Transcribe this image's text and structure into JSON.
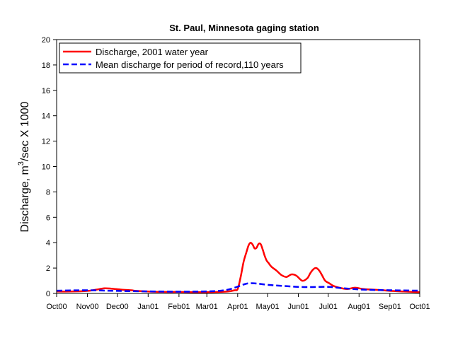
{
  "chart_data": {
    "type": "line",
    "title": "St. Paul, Minnesota gaging station",
    "xlabel": "",
    "ylabel": "Discharge, m³/sec X 1000",
    "ylabel_parts": {
      "pre": "Discharge, m",
      "sup": "3",
      "post": "/sec X 1000"
    },
    "ylim": [
      0,
      20
    ],
    "yticks": [
      "0",
      "2",
      "4",
      "6",
      "8",
      "10",
      "12",
      "14",
      "16",
      "18",
      "20"
    ],
    "xticks": [
      "Oct00",
      "Nov00",
      "Dec00",
      "Jan01",
      "Feb01",
      "Mar01",
      "Apr01",
      "May01",
      "Jun01",
      "Jul01",
      "Aug01",
      "Sep01",
      "Oct01"
    ],
    "legend_position": "top-left",
    "grid": false,
    "series": [
      {
        "name": "Discharge, 2001 water year",
        "color": "#ff0000",
        "style": "solid",
        "x": [
          "2000-10-01",
          "2000-10-15",
          "2000-11-01",
          "2000-11-10",
          "2000-11-18",
          "2000-11-25",
          "2000-12-05",
          "2000-12-15",
          "2000-12-20",
          "2001-01-01",
          "2001-01-15",
          "2001-02-01",
          "2001-02-15",
          "2001-03-01",
          "2001-03-15",
          "2001-03-22",
          "2001-03-29",
          "2001-04-01",
          "2001-04-04",
          "2001-04-07",
          "2001-04-10",
          "2001-04-12",
          "2001-04-14",
          "2001-04-16",
          "2001-04-18",
          "2001-04-20",
          "2001-04-22",
          "2001-04-24",
          "2001-04-26",
          "2001-04-28",
          "2001-04-30",
          "2001-05-02",
          "2001-05-05",
          "2001-05-10",
          "2001-05-15",
          "2001-05-20",
          "2001-05-25",
          "2001-05-30",
          "2001-06-05",
          "2001-06-10",
          "2001-06-13",
          "2001-06-16",
          "2001-06-19",
          "2001-06-22",
          "2001-06-25",
          "2001-06-28",
          "2001-07-02",
          "2001-07-06",
          "2001-07-12",
          "2001-07-20",
          "2001-07-28",
          "2001-08-05",
          "2001-08-15",
          "2001-08-25",
          "2001-09-01",
          "2001-09-15",
          "2001-10-01"
        ],
        "y": [
          0.15,
          0.15,
          0.2,
          0.3,
          0.4,
          0.38,
          0.3,
          0.25,
          0.2,
          0.15,
          0.12,
          0.12,
          0.1,
          0.1,
          0.12,
          0.15,
          0.25,
          0.35,
          1.3,
          2.5,
          3.3,
          3.8,
          4.0,
          3.85,
          3.55,
          3.6,
          3.9,
          3.9,
          3.5,
          3.0,
          2.6,
          2.4,
          2.1,
          1.8,
          1.45,
          1.3,
          1.5,
          1.4,
          1.0,
          1.2,
          1.6,
          1.9,
          2.0,
          1.8,
          1.4,
          1.0,
          0.8,
          0.6,
          0.45,
          0.35,
          0.45,
          0.35,
          0.3,
          0.25,
          0.2,
          0.15,
          0.1
        ]
      },
      {
        "name": "Mean discharge for period of record,110 years",
        "color": "#0000ff",
        "style": "dashed",
        "x": [
          "2000-10-01",
          "2000-11-01",
          "2000-12-01",
          "2001-01-01",
          "2001-02-01",
          "2001-03-01",
          "2001-03-15",
          "2001-03-25",
          "2001-04-05",
          "2001-04-12",
          "2001-04-20",
          "2001-05-01",
          "2001-05-15",
          "2001-06-01",
          "2001-06-15",
          "2001-07-01",
          "2001-07-15",
          "2001-08-01",
          "2001-08-15",
          "2001-09-01",
          "2001-10-01"
        ],
        "y": [
          0.22,
          0.25,
          0.2,
          0.16,
          0.14,
          0.16,
          0.22,
          0.35,
          0.65,
          0.8,
          0.78,
          0.68,
          0.6,
          0.52,
          0.5,
          0.52,
          0.42,
          0.32,
          0.28,
          0.25,
          0.22
        ]
      }
    ]
  }
}
